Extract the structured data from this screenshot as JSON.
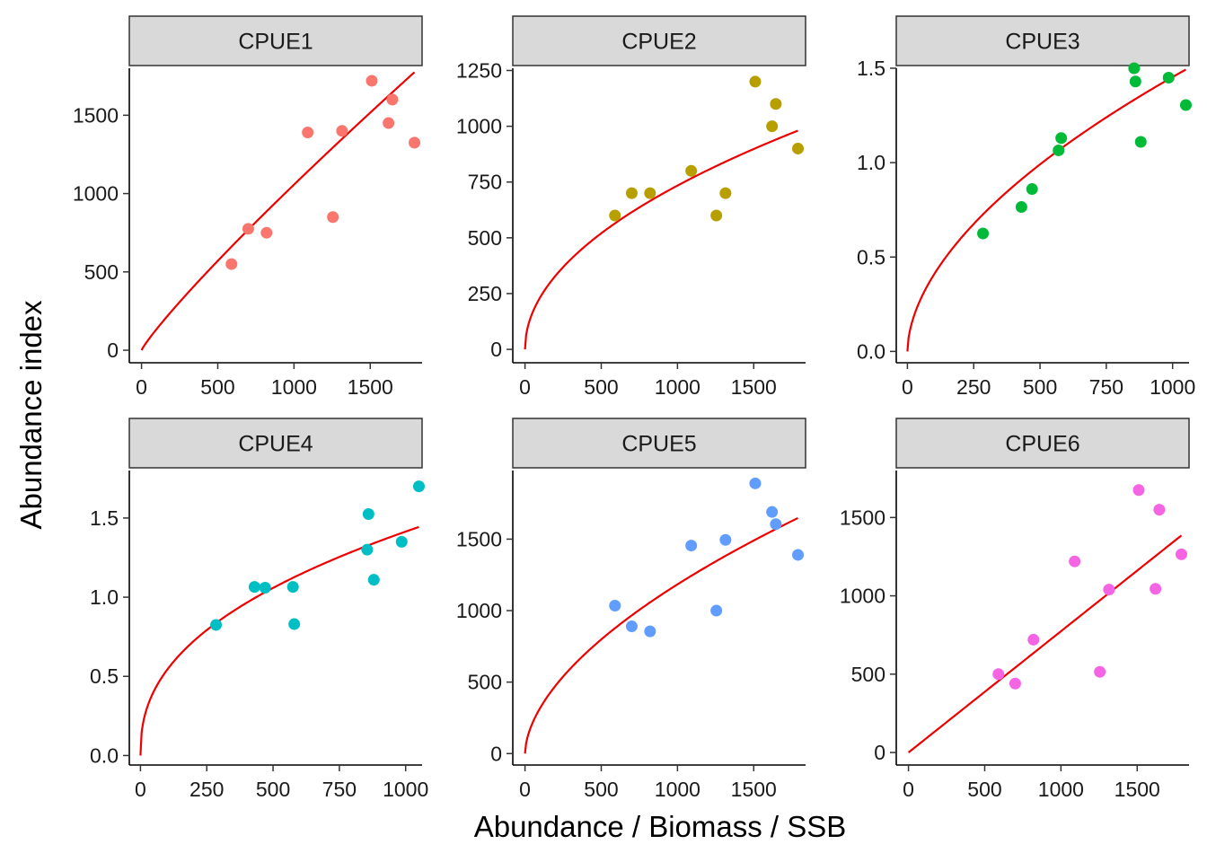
{
  "chart_data": {
    "type": "scatter",
    "layout": "facet-grid-2x3",
    "xlabel": "Abundance / Biomass / SSB",
    "ylabel": "Abundance index",
    "fit_color": "#ee0000",
    "strip_fill": "#d9d9d9",
    "panels": [
      {
        "name": "CPUE1",
        "color": "#f8766d",
        "xlim": [
          -80,
          1840
        ],
        "ylim": [
          -80,
          1800
        ],
        "xticks": [
          0,
          500,
          1000,
          1500
        ],
        "xtick_labels": [
          "0",
          "500",
          "1000",
          "1500"
        ],
        "yticks": [
          0,
          500,
          1000,
          1500
        ],
        "ytick_labels": [
          "0",
          "500",
          "1000",
          "1500"
        ],
        "points": [
          [
            590,
            550
          ],
          [
            700,
            775
          ],
          [
            820,
            750
          ],
          [
            1090,
            1390
          ],
          [
            1255,
            850
          ],
          [
            1315,
            1400
          ],
          [
            1510,
            1720
          ],
          [
            1620,
            1450
          ],
          [
            1645,
            1600
          ],
          [
            1790,
            1325
          ]
        ],
        "fit": {
          "q": 2.26,
          "b": 0.89,
          "x0": 0,
          "x1": 1790
        }
      },
      {
        "name": "CPUE2",
        "color": "#b79f00",
        "xlim": [
          -80,
          1840
        ],
        "ylim": [
          -60,
          1260
        ],
        "xticks": [
          0,
          500,
          1000,
          1500
        ],
        "xtick_labels": [
          "0",
          "500",
          "1000",
          "1500"
        ],
        "yticks": [
          0,
          250,
          500,
          750,
          1000,
          1250
        ],
        "ytick_labels": [
          "0",
          "250",
          "500",
          "750",
          "1000",
          "1250"
        ],
        "points": [
          [
            590,
            600
          ],
          [
            700,
            700
          ],
          [
            820,
            700
          ],
          [
            1090,
            800
          ],
          [
            1255,
            600
          ],
          [
            1315,
            700
          ],
          [
            1510,
            1200
          ],
          [
            1620,
            1000
          ],
          [
            1645,
            1100
          ],
          [
            1790,
            900
          ]
        ],
        "fit": {
          "q": 23.7,
          "b": 0.497,
          "x0": 0,
          "x1": 1790
        }
      },
      {
        "name": "CPUE3",
        "color": "#00ba38",
        "xlim": [
          -42,
          1062
        ],
        "ylim": [
          -0.06,
          1.5
        ],
        "xticks": [
          0,
          250,
          500,
          750,
          1000
        ],
        "xtick_labels": [
          "0",
          "250",
          "500",
          "750",
          "1000"
        ],
        "yticks": [
          0,
          0.5,
          1.0,
          1.5
        ],
        "ytick_labels": [
          "0.0",
          "0.5",
          "1.0",
          "1.5"
        ],
        "points": [
          [
            285,
            0.625
          ],
          [
            430,
            0.765
          ],
          [
            470,
            0.86
          ],
          [
            570,
            1.065
          ],
          [
            580,
            1.13
          ],
          [
            855,
            1.5
          ],
          [
            860,
            1.43
          ],
          [
            880,
            1.11
          ],
          [
            985,
            1.45
          ],
          [
            1050,
            1.305
          ]
        ],
        "fit": {
          "q": 0.03187,
          "b": 0.553,
          "x0": 0,
          "x1": 1050
        }
      },
      {
        "name": "CPUE4",
        "color": "#00bfc4",
        "xlim": [
          -42,
          1062
        ],
        "ylim": [
          -0.06,
          1.8
        ],
        "xticks": [
          0,
          250,
          500,
          750,
          1000
        ],
        "xtick_labels": [
          "0",
          "250",
          "500",
          "750",
          "1000"
        ],
        "yticks": [
          0,
          0.5,
          1.0,
          1.5
        ],
        "ytick_labels": [
          "0.0",
          "0.5",
          "1.0",
          "1.5"
        ],
        "points": [
          [
            285,
            0.825
          ],
          [
            430,
            1.065
          ],
          [
            470,
            1.06
          ],
          [
            575,
            1.065
          ],
          [
            580,
            0.83
          ],
          [
            855,
            1.3
          ],
          [
            860,
            1.525
          ],
          [
            880,
            1.11
          ],
          [
            985,
            1.35
          ],
          [
            1050,
            1.7
          ]
        ],
        "fit": {
          "q": 0.0788,
          "b": 0.418,
          "x0": 0,
          "x1": 1050
        }
      },
      {
        "name": "CPUE5",
        "color": "#619cff",
        "xlim": [
          -80,
          1840
        ],
        "ylim": [
          -80,
          1980
        ],
        "xticks": [
          0,
          500,
          1000,
          1500
        ],
        "xtick_labels": [
          "0",
          "500",
          "1000",
          "1500"
        ],
        "yticks": [
          0,
          500,
          1000,
          1500
        ],
        "ytick_labels": [
          "0",
          "500",
          "1000",
          "1500"
        ],
        "points": [
          [
            590,
            1035
          ],
          [
            700,
            890
          ],
          [
            820,
            855
          ],
          [
            1090,
            1455
          ],
          [
            1255,
            1000
          ],
          [
            1315,
            1495
          ],
          [
            1510,
            1890
          ],
          [
            1620,
            1690
          ],
          [
            1645,
            1605
          ],
          [
            1790,
            1390
          ]
        ],
        "fit": {
          "q": 23.4,
          "b": 0.568,
          "x0": 0,
          "x1": 1790
        }
      },
      {
        "name": "CPUE6",
        "color": "#f564e3",
        "xlim": [
          -80,
          1840
        ],
        "ylim": [
          -80,
          1800
        ],
        "xticks": [
          0,
          500,
          1000,
          1500
        ],
        "xtick_labels": [
          "0",
          "500",
          "1000",
          "1500"
        ],
        "yticks": [
          0,
          500,
          1000,
          1500
        ],
        "ytick_labels": [
          "0",
          "500",
          "1000",
          "1500"
        ],
        "points": [
          [
            590,
            500
          ],
          [
            700,
            440
          ],
          [
            820,
            720
          ],
          [
            1090,
            1220
          ],
          [
            1255,
            515
          ],
          [
            1315,
            1040
          ],
          [
            1510,
            1675
          ],
          [
            1620,
            1045
          ],
          [
            1645,
            1550
          ],
          [
            1790,
            1265
          ]
        ],
        "fit": {
          "q": 0.774,
          "b": 1.0,
          "x0": 0,
          "x1": 1790
        }
      }
    ]
  }
}
